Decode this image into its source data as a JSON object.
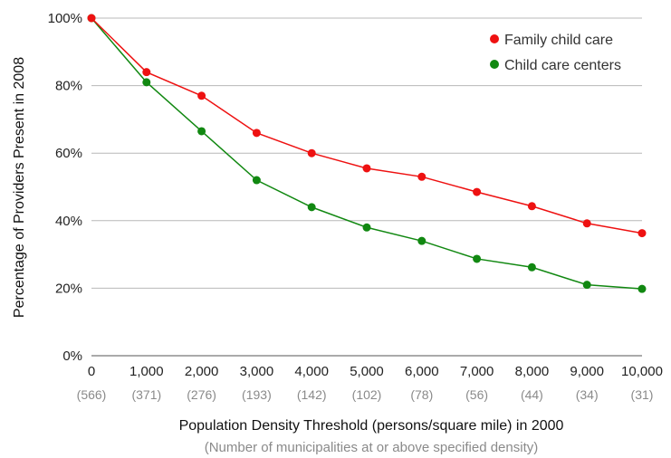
{
  "chart_data": {
    "type": "line",
    "title": "",
    "ylabel": "Percentage of Providers Present in 2008",
    "xlabel": "Population Density Threshold (persons/square mile) in 2000",
    "xsublabel": "(Number of municipalities at or above specified density)",
    "x_ticks": [
      "0",
      "1,000",
      "2,000",
      "3,000",
      "4,000",
      "5,000",
      "6,000",
      "7,000",
      "8,000",
      "9,000",
      "10,000"
    ],
    "x_counts": [
      "(566)",
      "(371)",
      "(276)",
      "(193)",
      "(142)",
      "(102)",
      "(78)",
      "(56)",
      "(44)",
      "(34)",
      "(31)"
    ],
    "x": [
      0,
      1000,
      2000,
      3000,
      4000,
      5000,
      6000,
      7000,
      8000,
      9000,
      10000
    ],
    "y_ticks": [
      "0%",
      "20%",
      "40%",
      "60%",
      "80%",
      "100%"
    ],
    "ylim": [
      0,
      100
    ],
    "grid": true,
    "legend_position": "top-right",
    "series": [
      {
        "name": "Family child care",
        "color": "#ee1111",
        "values": [
          100,
          84,
          77,
          66,
          60,
          55.5,
          53,
          48.5,
          44.3,
          39.2,
          36.3
        ]
      },
      {
        "name": "Child care centers",
        "color": "#118811",
        "values": [
          100,
          81,
          66.5,
          52,
          44,
          38,
          34,
          28.7,
          26.2,
          21,
          19.8
        ]
      }
    ]
  }
}
